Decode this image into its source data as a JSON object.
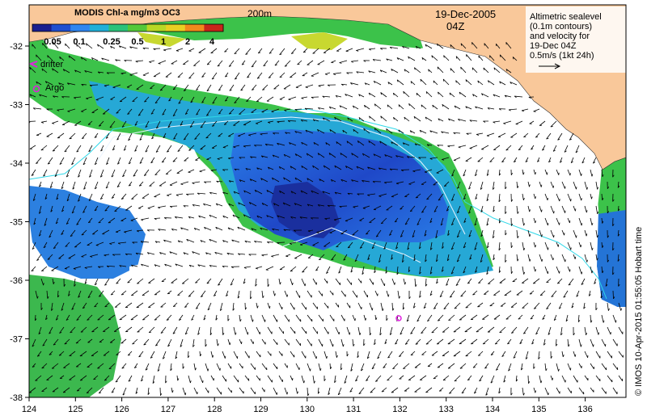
{
  "colorbar": {
    "title": "MODIS Chl-a mg/m3 OC3",
    "ticks": [
      "0.05",
      "0.1",
      "0.25",
      "0.5",
      "1",
      "2",
      "4"
    ],
    "colors": [
      "#1a1f8f",
      "#1f4fd0",
      "#2f86f0",
      "#20b0d8",
      "#2cc27a",
      "#54c83a",
      "#b8d825",
      "#e8cf22",
      "#f08a1c",
      "#c8261a"
    ]
  },
  "depth_label": "200m",
  "date": "19-Dec-2005",
  "time": "04Z",
  "info_lines": [
    "Altimetric sealevel",
    "(0.1m contours)",
    "and velocity for",
    "19-Dec 04Z",
    "0.5m/s (1kt 24h)"
  ],
  "legend": {
    "drifter": "drifter",
    "argo": "Argo",
    "drifter_color": "#e020e0",
    "argo_color": "#e020e0"
  },
  "x_axis_ticks": [
    "124",
    "125",
    "126",
    "127",
    "128",
    "129",
    "130",
    "131",
    "132",
    "133",
    "134",
    "135",
    "136"
  ],
  "y_axis_ticks": [
    "-32",
    "-33",
    "-34",
    "-35",
    "-36",
    "-37",
    "-38"
  ],
  "credit": "© IMOS 10-Apr-2015 01:55:05 Hobart time",
  "colors": {
    "land": "#f9c89a",
    "bathymetry_line": "#30d8e8",
    "contour_line": "#e8f4ff"
  }
}
